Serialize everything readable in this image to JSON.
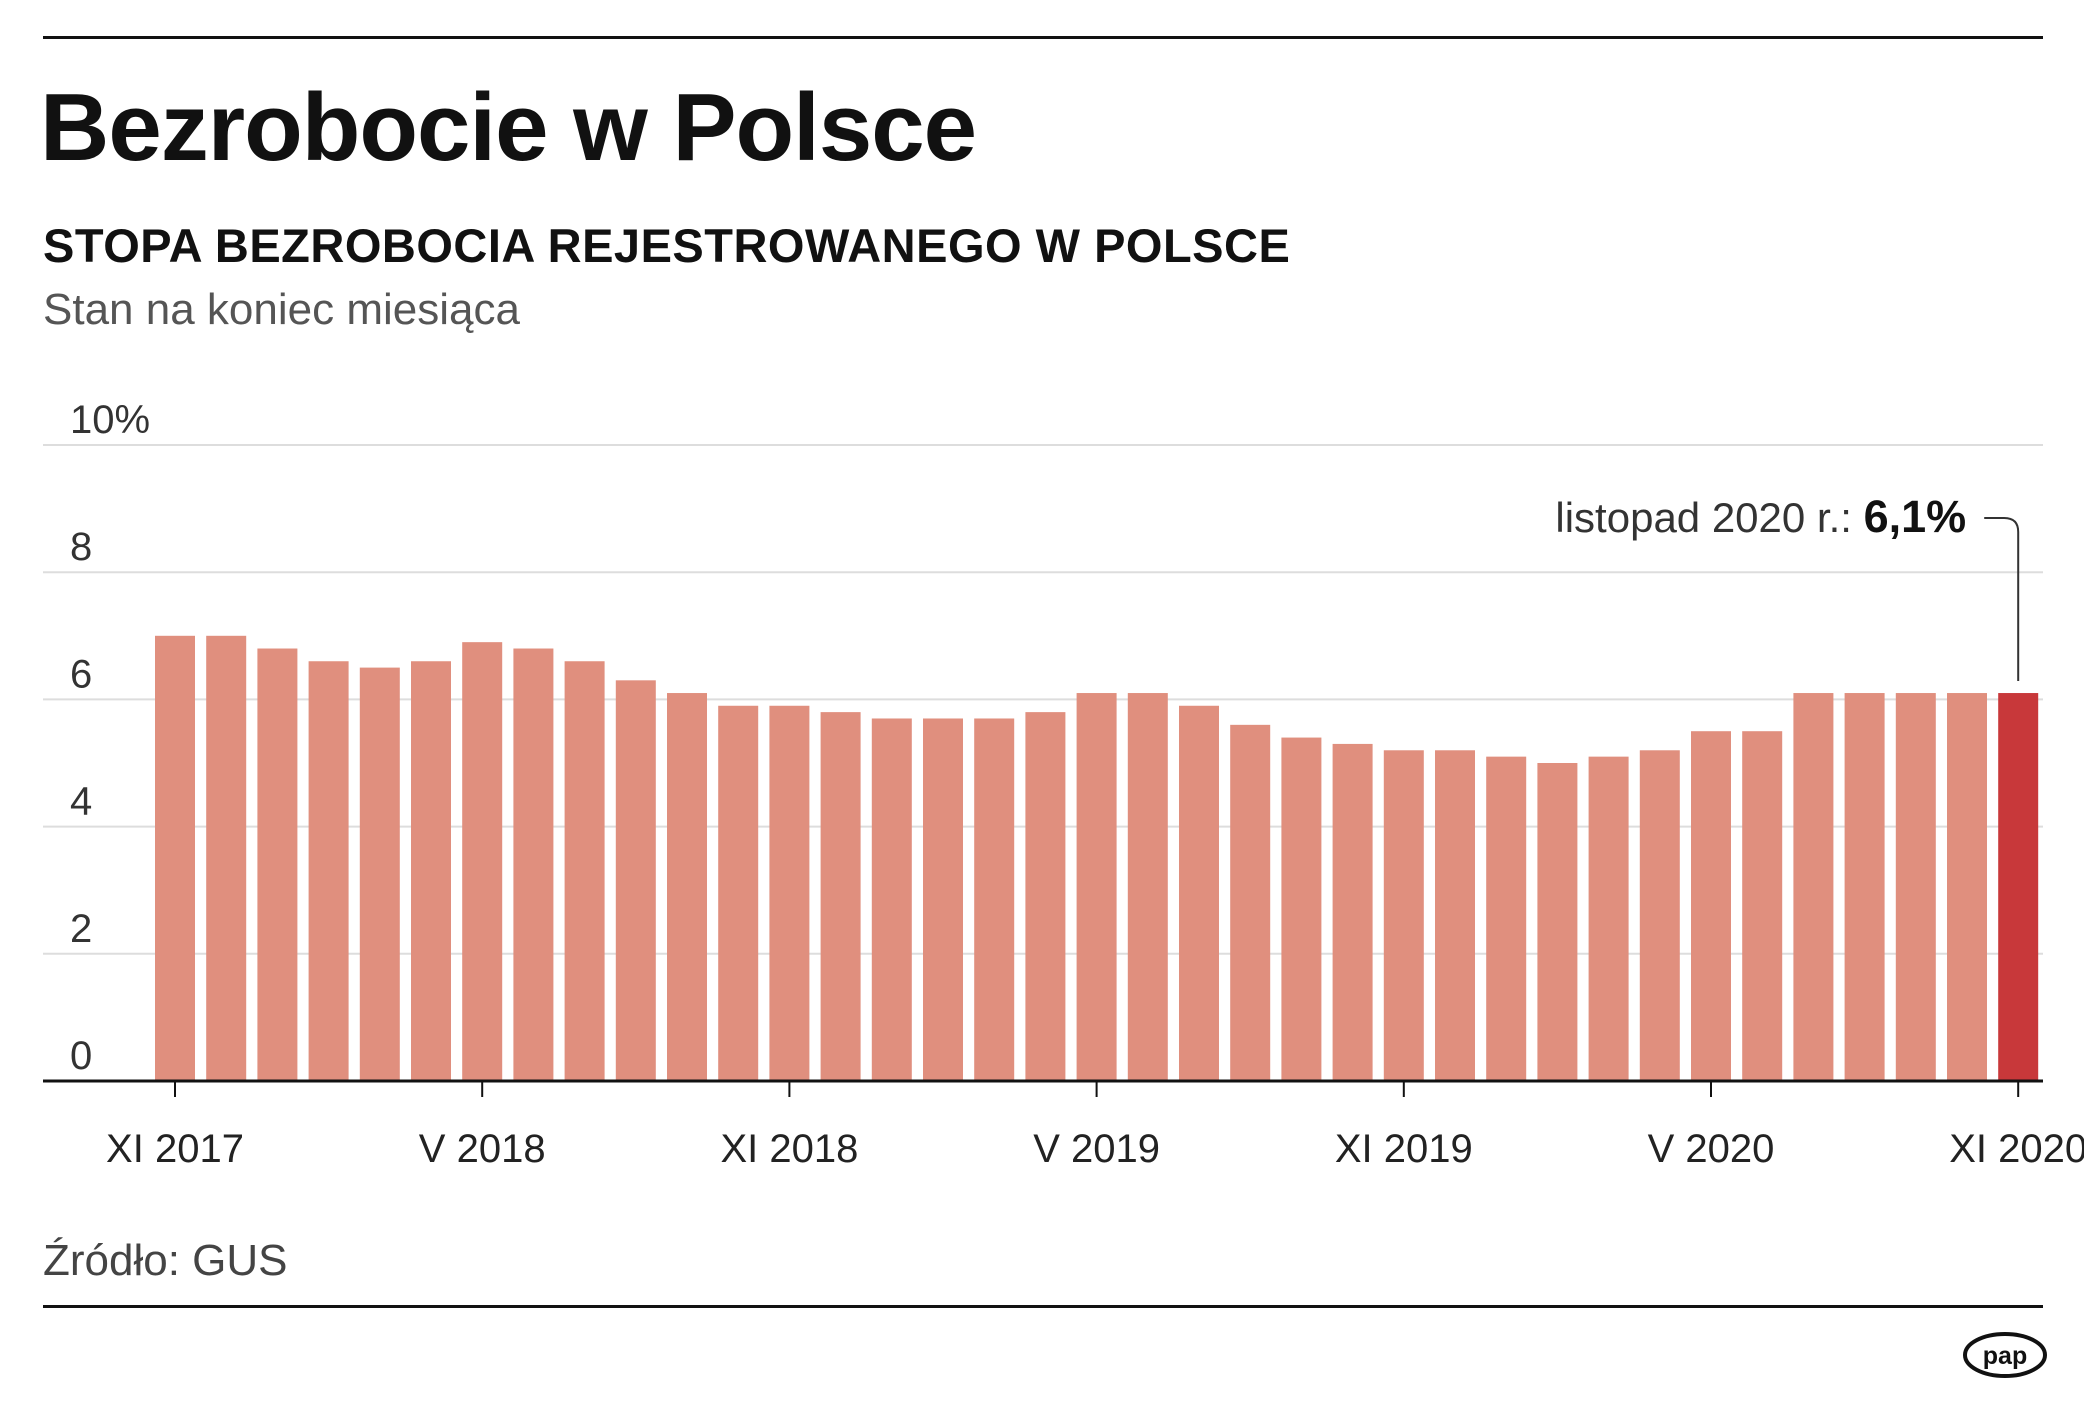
{
  "header": {
    "title": "Bezrobocie w Polsce",
    "subtitle": "STOPA BEZROBOCIA REJESTROWANEGO W POLSCE",
    "note": "Stan na koniec miesiąca"
  },
  "footer": {
    "source": "Źródło: GUS",
    "logo": "pap"
  },
  "colors": {
    "bar": "#e08f7e",
    "highlight": "#c8383a",
    "grid": "#dddddd",
    "axis": "#111111"
  },
  "chart_data": {
    "type": "bar",
    "ylim": [
      0,
      10
    ],
    "yticks": [
      0,
      2,
      4,
      6,
      8,
      10
    ],
    "ytick_labels": [
      "0",
      "2",
      "4",
      "6",
      "8",
      "10%"
    ],
    "grid": true,
    "xtick_labels": [
      "XI 2017",
      "V 2018",
      "XI 2018",
      "V 2019",
      "XI 2019",
      "V 2020",
      "XI 2020"
    ],
    "xtick_every": 6,
    "values": [
      7.0,
      7.0,
      6.8,
      6.6,
      6.5,
      6.6,
      6.9,
      6.8,
      6.6,
      6.3,
      6.1,
      5.9,
      5.9,
      5.8,
      5.7,
      5.7,
      5.7,
      5.8,
      6.1,
      6.1,
      5.9,
      5.6,
      5.4,
      5.3,
      5.2,
      5.2,
      5.1,
      5.0,
      5.1,
      5.2,
      5.5,
      5.5,
      6.1,
      6.1,
      6.1,
      6.1,
      6.1
    ],
    "highlight_index": 36,
    "annotation": {
      "label": "listopad 2020 r.:",
      "value": "6,1%"
    }
  }
}
